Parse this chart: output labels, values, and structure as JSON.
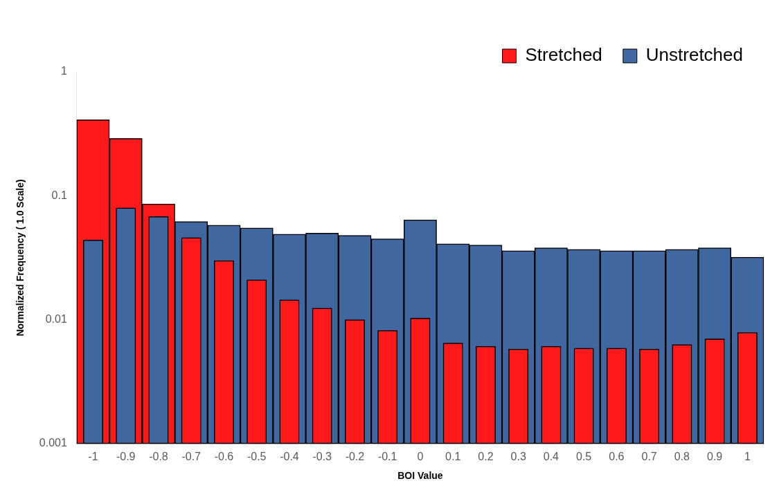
{
  "chart_data": {
    "type": "bar",
    "xlabel": "BOI Value",
    "ylabel": "Normalized Frequency ( 1.0 Scale)",
    "categories": [
      "-1",
      "-0.9",
      "-0.8",
      "-0.7",
      "-0.6",
      "-0.5",
      "-0.4",
      "-0.3",
      "-0.2",
      "-0.1",
      "0",
      "0.1",
      "0.2",
      "0.3",
      "0.4",
      "0.5",
      "0.6",
      "0.7",
      "0.8",
      "0.9",
      "1"
    ],
    "series": [
      {
        "name": "Stretched",
        "color": "#fe1a1a",
        "values": [
          0.41,
          0.29,
          0.086,
          0.046,
          0.03,
          0.021,
          0.0145,
          0.0124,
          0.01,
          0.0082,
          0.0103,
          0.0065,
          0.0061,
          0.0058,
          0.0061,
          0.0059,
          0.0059,
          0.0058,
          0.0063,
          0.007,
          0.0079
        ]
      },
      {
        "name": "Unstretched",
        "color": "#4167a0",
        "values": [
          0.044,
          0.08,
          0.068,
          0.062,
          0.058,
          0.055,
          0.049,
          0.05,
          0.048,
          0.045,
          0.064,
          0.041,
          0.04,
          0.036,
          0.038,
          0.037,
          0.036,
          0.036,
          0.037,
          0.038,
          0.032
        ]
      }
    ],
    "log": "y",
    "ylim": [
      0.001,
      1
    ],
    "yticks": [
      0.001,
      0.01,
      0.1,
      1
    ],
    "grid": false,
    "legend": "top right"
  }
}
